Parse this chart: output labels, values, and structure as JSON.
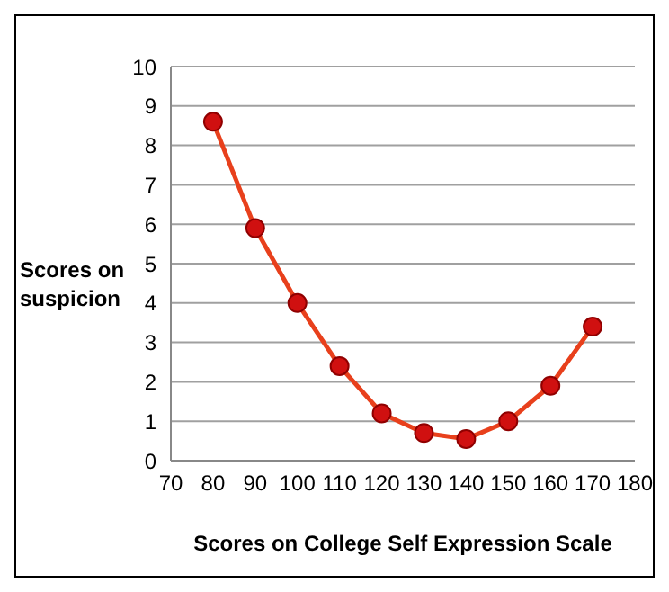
{
  "chart_data": {
    "type": "line",
    "xlabel": "Scores on College Self Expression Scale",
    "ylabel": "Scores on suspicion",
    "x": [
      80,
      90,
      100,
      110,
      120,
      130,
      140,
      150,
      160,
      170
    ],
    "series": [
      {
        "color": "#e8401c",
        "values": [
          8.6,
          5.9,
          4.0,
          2.4,
          1.2,
          0.7,
          0.55,
          1.0,
          1.9,
          3.4
        ]
      }
    ],
    "xlim": [
      70,
      180
    ],
    "xticks": [
      70,
      80,
      90,
      100,
      110,
      120,
      130,
      140,
      150,
      160,
      170,
      180
    ],
    "ylim": [
      0,
      10
    ],
    "yticks": [
      0,
      1,
      2,
      3,
      4,
      5,
      6,
      7,
      8,
      9,
      10
    ],
    "grid": "y",
    "marker": "circle",
    "line_style": "solid"
  }
}
